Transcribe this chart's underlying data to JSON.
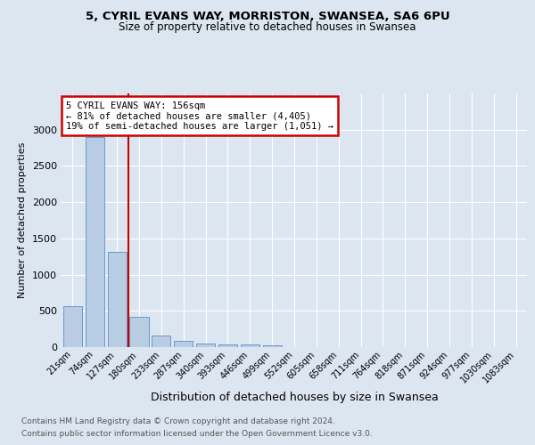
{
  "title1": "5, CYRIL EVANS WAY, MORRISTON, SWANSEA, SA6 6PU",
  "title2": "Size of property relative to detached houses in Swansea",
  "xlabel": "Distribution of detached houses by size in Swansea",
  "ylabel": "Number of detached properties",
  "footnote1": "Contains HM Land Registry data © Crown copyright and database right 2024.",
  "footnote2": "Contains public sector information licensed under the Open Government Licence v3.0.",
  "bin_labels": [
    "21sqm",
    "74sqm",
    "127sqm",
    "180sqm",
    "233sqm",
    "287sqm",
    "340sqm",
    "393sqm",
    "446sqm",
    "499sqm",
    "552sqm",
    "605sqm",
    "658sqm",
    "711sqm",
    "764sqm",
    "818sqm",
    "871sqm",
    "924sqm",
    "977sqm",
    "1030sqm",
    "1083sqm"
  ],
  "bin_values": [
    570,
    2900,
    1310,
    420,
    165,
    90,
    55,
    40,
    35,
    25,
    0,
    0,
    0,
    0,
    0,
    0,
    0,
    0,
    0,
    0,
    0
  ],
  "bar_color": "#b8cce4",
  "bar_edge_color": "#5b8fc9",
  "red_line_x": 2.5,
  "annotation_line1": "5 CYRIL EVANS WAY: 156sqm",
  "annotation_line2": "← 81% of detached houses are smaller (4,405)",
  "annotation_line3": "19% of semi-detached houses are larger (1,051) →",
  "annotation_box_color": "#ffffff",
  "annotation_box_edge": "#cc0000",
  "red_line_color": "#cc0000",
  "ylim": [
    0,
    3500
  ],
  "yticks": [
    0,
    500,
    1000,
    1500,
    2000,
    2500,
    3000
  ],
  "bg_color": "#dce6f0",
  "plot_bg_color": "#dce6f0",
  "grid_color": "#ffffff"
}
